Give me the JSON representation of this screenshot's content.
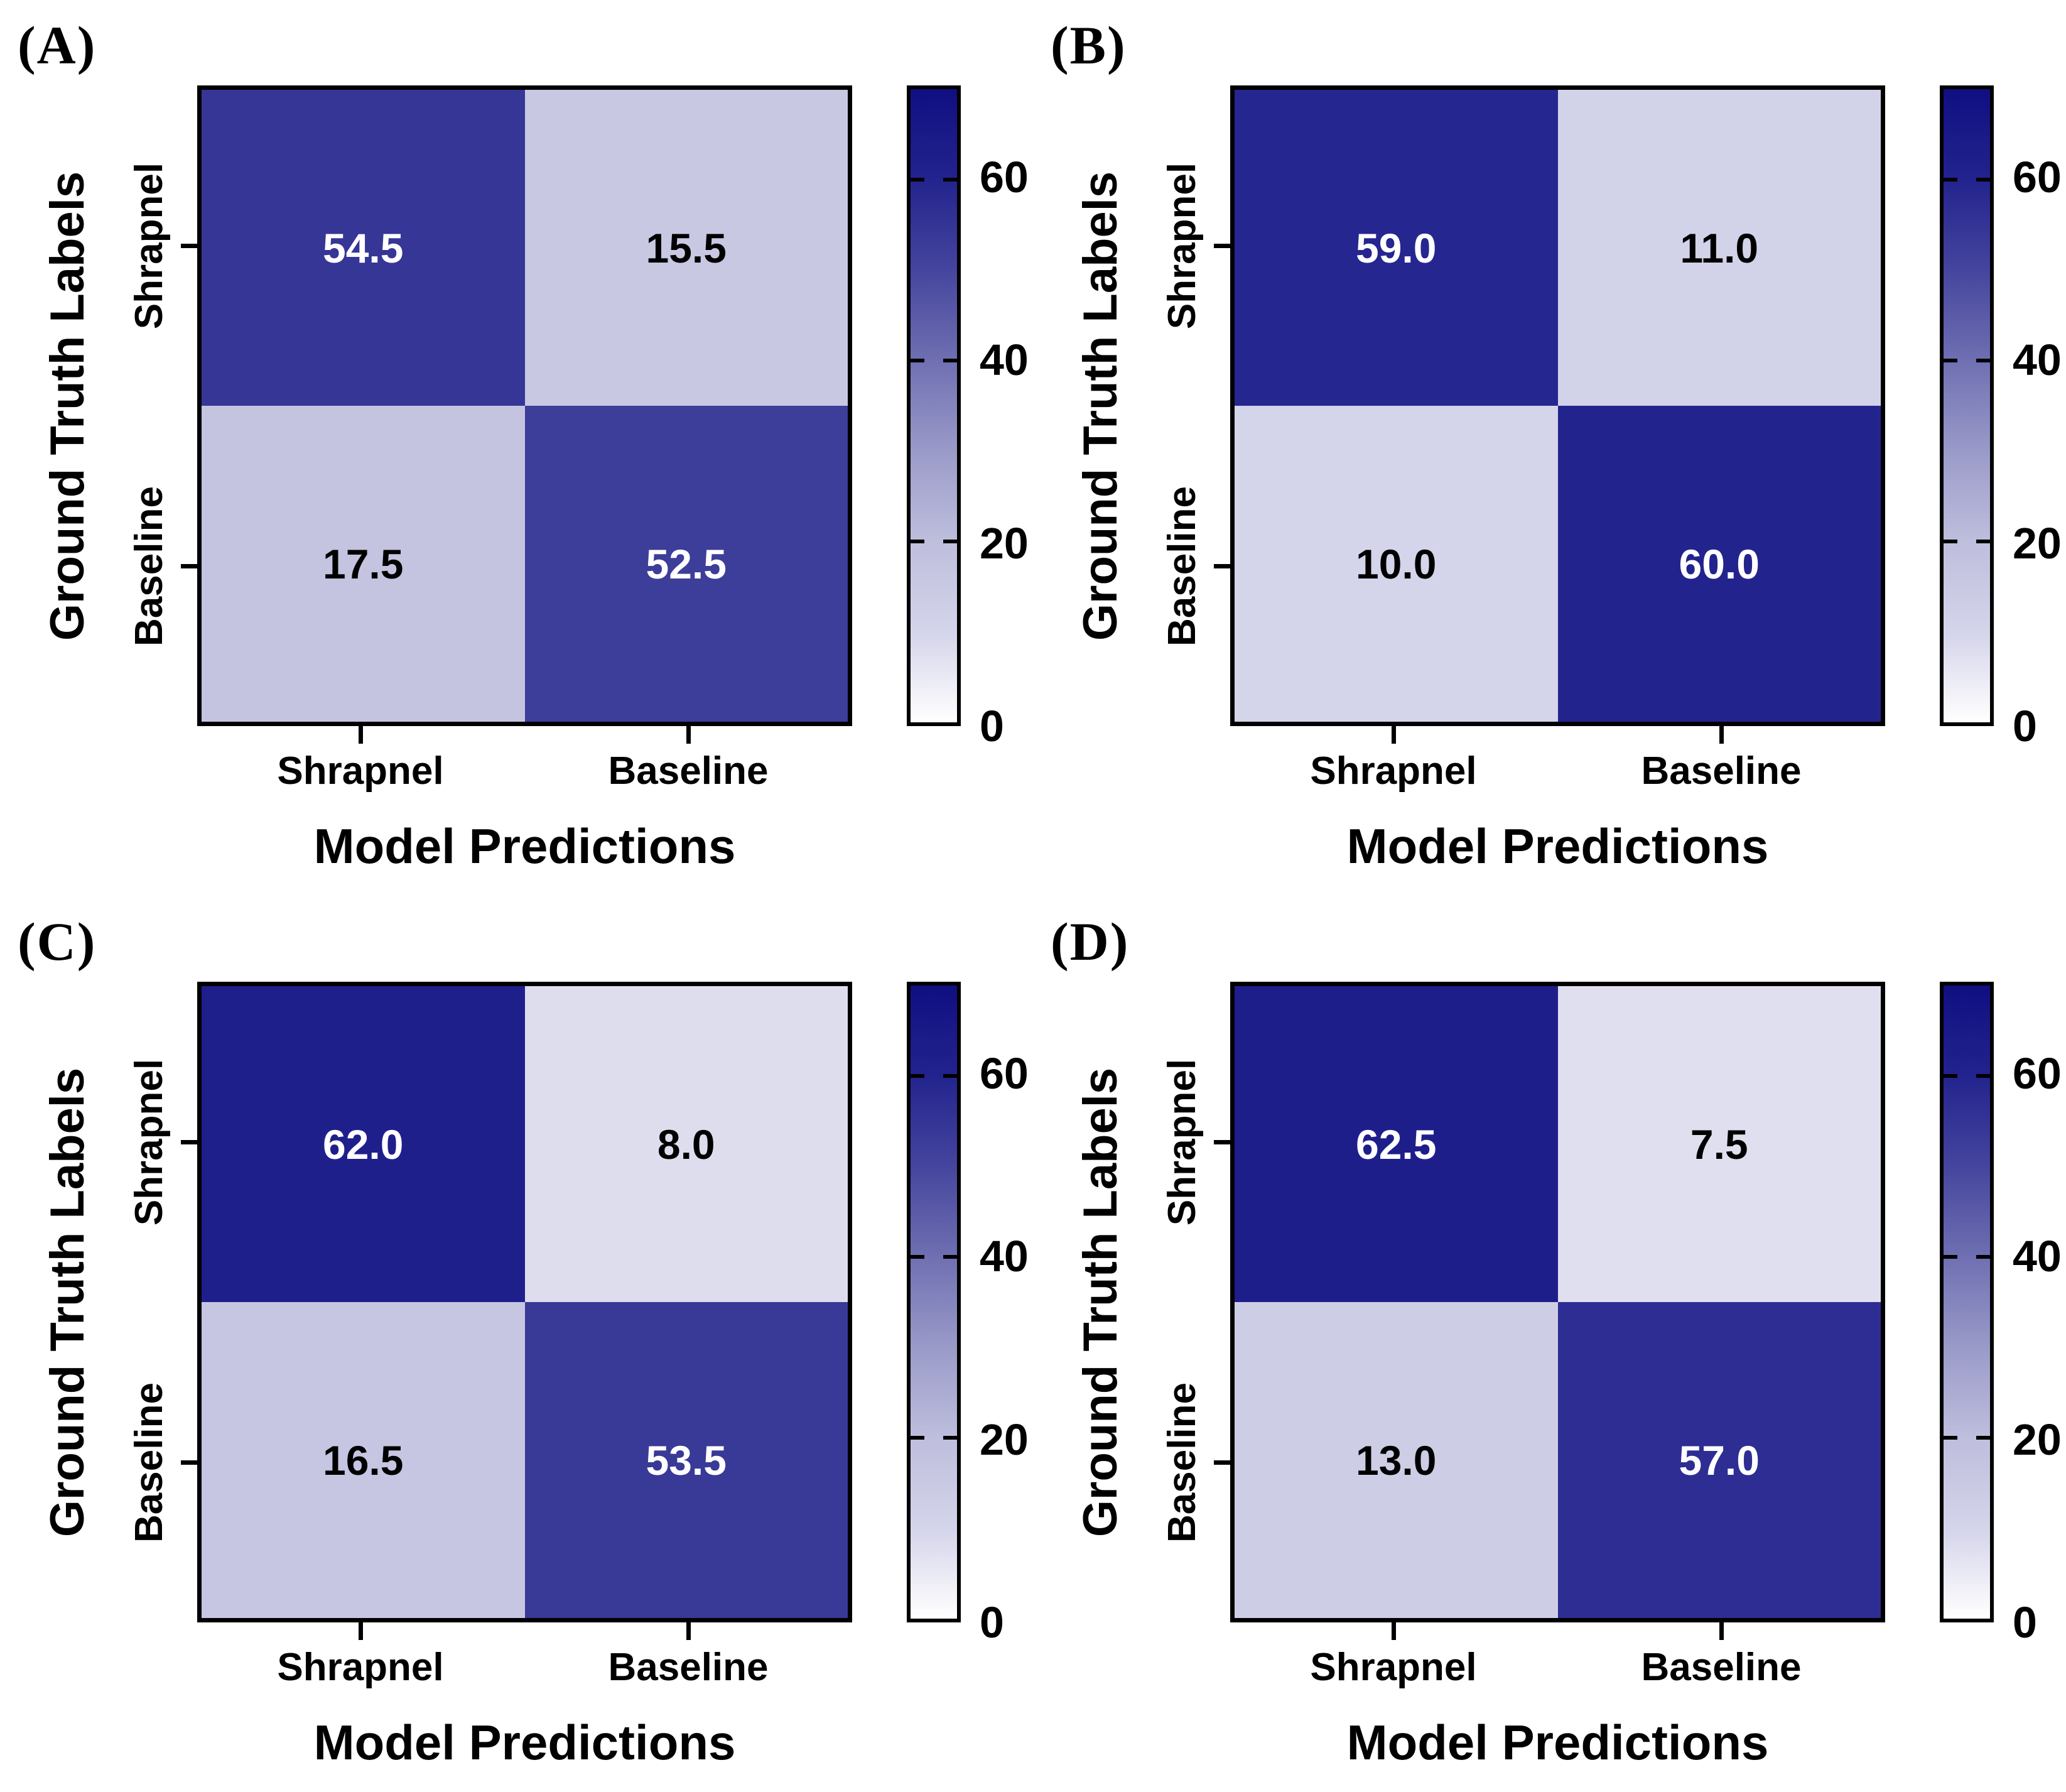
{
  "style": {
    "background": "#ffffff",
    "frame_color": "#000000",
    "cell_text_dark": "#000000",
    "cell_text_light": "#ffffff",
    "light_text_threshold": 40,
    "colormap_stops": [
      [
        0,
        "#ffffff"
      ],
      [
        10,
        "#d4d4ea"
      ],
      [
        20,
        "#bebedd"
      ],
      [
        30,
        "#9a9ac9"
      ],
      [
        40,
        "#6f6fb2"
      ],
      [
        50,
        "#45459e"
      ],
      [
        60,
        "#23238e"
      ],
      [
        70,
        "#0f0f82"
      ]
    ]
  },
  "chart_data": [
    {
      "type": "heatmap",
      "panel_label": "(A)",
      "xlabel": "Model Predictions",
      "ylabel": "Ground Truth Labels",
      "x_categories": [
        "Shrapnel",
        "Baseline"
      ],
      "y_categories": [
        "Shrapnel",
        "Baseline"
      ],
      "values": [
        [
          54.5,
          15.5
        ],
        [
          17.5,
          52.5
        ]
      ],
      "value_format_decimals": 1,
      "colorbar": {
        "vmin": 0,
        "vmax": 70,
        "ticks": [
          0,
          20,
          40,
          60
        ],
        "position": "right"
      },
      "grid": false
    },
    {
      "type": "heatmap",
      "panel_label": "(B)",
      "xlabel": "Model Predictions",
      "ylabel": "Ground Truth Labels",
      "x_categories": [
        "Shrapnel",
        "Baseline"
      ],
      "y_categories": [
        "Shrapnel",
        "Baseline"
      ],
      "values": [
        [
          59.0,
          11.0
        ],
        [
          10.0,
          60.0
        ]
      ],
      "value_format_decimals": 1,
      "colorbar": {
        "vmin": 0,
        "vmax": 70,
        "ticks": [
          0,
          20,
          40,
          60
        ],
        "position": "right"
      },
      "grid": false
    },
    {
      "type": "heatmap",
      "panel_label": "(C)",
      "xlabel": "Model Predictions",
      "ylabel": "Ground Truth Labels",
      "x_categories": [
        "Shrapnel",
        "Baseline"
      ],
      "y_categories": [
        "Shrapnel",
        "Baseline"
      ],
      "values": [
        [
          62.0,
          8.0
        ],
        [
          16.5,
          53.5
        ]
      ],
      "value_format_decimals": 1,
      "colorbar": {
        "vmin": 0,
        "vmax": 70,
        "ticks": [
          0,
          20,
          40,
          60
        ],
        "position": "right"
      },
      "grid": false
    },
    {
      "type": "heatmap",
      "panel_label": "(D)",
      "xlabel": "Model Predictions",
      "ylabel": "Ground Truth Labels",
      "x_categories": [
        "Shrapnel",
        "Baseline"
      ],
      "y_categories": [
        "Shrapnel",
        "Baseline"
      ],
      "values": [
        [
          62.5,
          7.5
        ],
        [
          13.0,
          57.0
        ]
      ],
      "value_format_decimals": 1,
      "colorbar": {
        "vmin": 0,
        "vmax": 70,
        "ticks": [
          0,
          20,
          40,
          60
        ],
        "position": "right"
      },
      "grid": false
    }
  ]
}
